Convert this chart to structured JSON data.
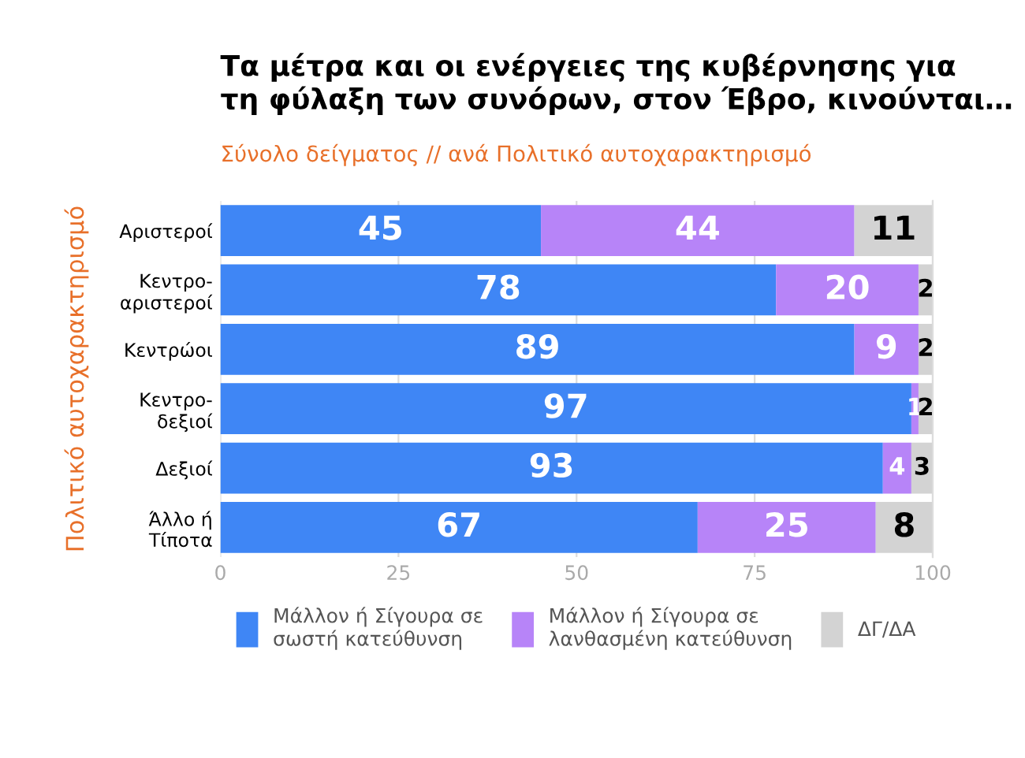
{
  "chart_data": {
    "type": "bar",
    "orientation": "horizontal",
    "stacked": true,
    "title": "Τα μέτρα και οι ενέργειες της κυβέρνησης για\nτη φύλαξη των συνόρων, στον Έβρο, κινούνται…",
    "subtitle": "Σύνολο δείγματος // ανά Πολιτικό αυτοχαρακτηρισμό",
    "ylabel": "Πολιτικό αυτοχαρακτηρισμό",
    "categories": [
      "Αριστεροί",
      "Κεντρο-\nαριστεροί",
      "Κεντρώοι",
      "Κεντρο-\nδεξιοί",
      "Δεξιοί",
      "Άλλο ή\nΤίποτα"
    ],
    "series": [
      {
        "name": "Μάλλον ή Σίγουρα σε\nσωστή κατεύθυνση",
        "color": "#3f86f5",
        "values": [
          45,
          78,
          89,
          97,
          93,
          67
        ]
      },
      {
        "name": "Μάλλον ή Σίγουρα σε\nλανθασμένη κατεύθυνση",
        "color": "#b784f8",
        "values": [
          44,
          20,
          9,
          1,
          4,
          25
        ]
      },
      {
        "name": "ΔΓ/ΔΑ",
        "color": "#d3d3d3",
        "values": [
          11,
          2,
          2,
          2,
          3,
          8
        ]
      }
    ],
    "xlim": [
      0,
      100
    ],
    "xticks": [
      0,
      25,
      50,
      75,
      100
    ],
    "grid": "x",
    "legend": "bottom",
    "data_labels": true
  }
}
